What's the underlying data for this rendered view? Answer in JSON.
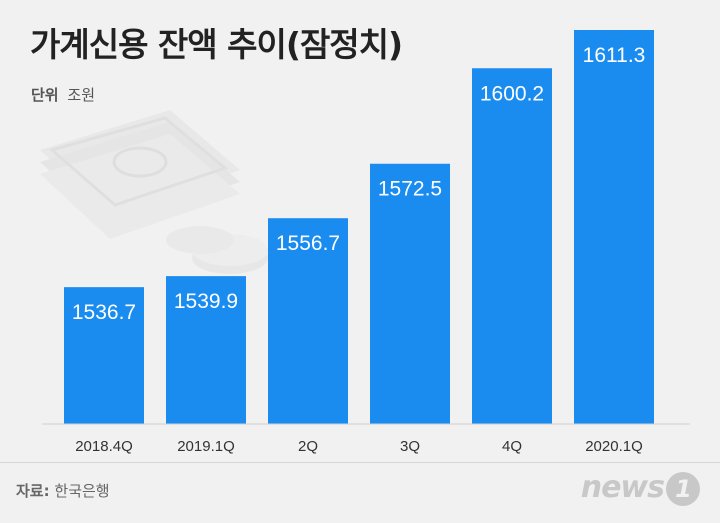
{
  "header": {
    "title": "가계신용 잔액 추이(잠정치)",
    "unit_label": "단위",
    "unit_value": "조원"
  },
  "chart_data": {
    "type": "bar",
    "categories": [
      "2018.4Q",
      "2019.1Q",
      "2Q",
      "3Q",
      "4Q",
      "2020.1Q"
    ],
    "values": [
      1536.7,
      1539.9,
      1556.7,
      1572.5,
      1600.2,
      1611.3
    ],
    "value_labels": [
      "1536.7",
      "1539.9",
      "1556.7",
      "1572.5",
      "1600.2",
      "1611.3"
    ],
    "title": "가계신용 잔액 추이(잠정치)",
    "ylabel": "",
    "xlabel": "",
    "bar_color": "#1a8cf0",
    "grid": false,
    "legend": "none"
  },
  "footer": {
    "source_label": "자료:",
    "source_value": "한국은행",
    "logo_text": "news",
    "logo_num": "1"
  }
}
